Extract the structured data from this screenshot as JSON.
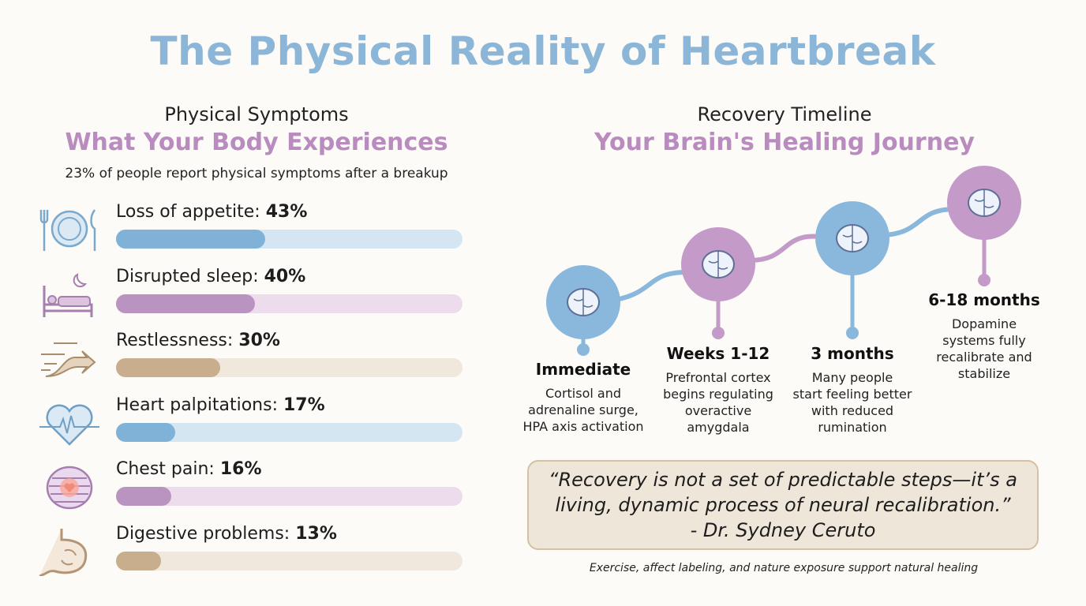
{
  "title": "The Physical Reality of Heartbreak",
  "left": {
    "heading": "Physical Symptoms",
    "subheading": "What Your Body Experiences",
    "note": "23% of people report physical symptoms after a breakup"
  },
  "chart_data": {
    "type": "bar",
    "orientation": "horizontal",
    "unit": "%",
    "xlim": [
      0,
      100
    ],
    "categories": [
      "Loss of appetite",
      "Disrupted sleep",
      "Restlessness",
      "Heart palpitations",
      "Chest pain",
      "Digestive problems"
    ],
    "values": [
      43,
      40,
      30,
      17,
      16,
      13
    ],
    "value_labels": [
      "43%",
      "40%",
      "30%",
      "17%",
      "16%",
      "13%"
    ],
    "icons": [
      "plate-cutlery-icon",
      "bed-moon-icon",
      "wind-arrow-icon",
      "heart-pulse-icon",
      "ribcage-heart-icon",
      "stomach-icon"
    ],
    "colors": [
      {
        "fill": "#80b1d6",
        "track": "#d4e6f2"
      },
      {
        "fill": "#b994c1",
        "track": "#ecdcec"
      },
      {
        "fill": "#c9ae8e",
        "track": "#f0e7dd"
      },
      {
        "fill": "#80b1d6",
        "track": "#d4e6f2"
      },
      {
        "fill": "#b994c1",
        "track": "#ecdcec"
      },
      {
        "fill": "#c9ae8e",
        "track": "#f0e7dd"
      }
    ]
  },
  "right": {
    "heading": "Recovery Timeline",
    "subheading": "Your Brain's Healing Journey",
    "stages": [
      {
        "title": "Immediate",
        "desc": [
          "Cortisol and",
          "adrenaline surge,",
          "HPA axis activation"
        ],
        "icon": "brain-alert-icon",
        "color": "#8ab8dc"
      },
      {
        "title": "Weeks 1-12",
        "desc": [
          "Prefrontal cortex",
          "begins regulating",
          "overactive",
          "amygdala"
        ],
        "icon": "brain-shield-icon",
        "color": "#c39ac8"
      },
      {
        "title": "3 months",
        "desc": [
          "Many people",
          "start feeling better",
          "with reduced",
          "rumination"
        ],
        "icon": "brain-smile-icon",
        "color": "#8ab8dc"
      },
      {
        "title": "6-18 months",
        "desc": [
          "Dopamine",
          "systems fully",
          "recalibrate and",
          "stabilize"
        ],
        "icon": "brain-pulse-icon",
        "color": "#c39ac8"
      }
    ],
    "quote": [
      "“Recovery is not a set of predictable steps—it’s a",
      "living, dynamic process of neural recalibration.”",
      "- Dr. Sydney Ceruto"
    ],
    "footnote": "Exercise, affect labeling, and nature exposure support natural healing"
  }
}
